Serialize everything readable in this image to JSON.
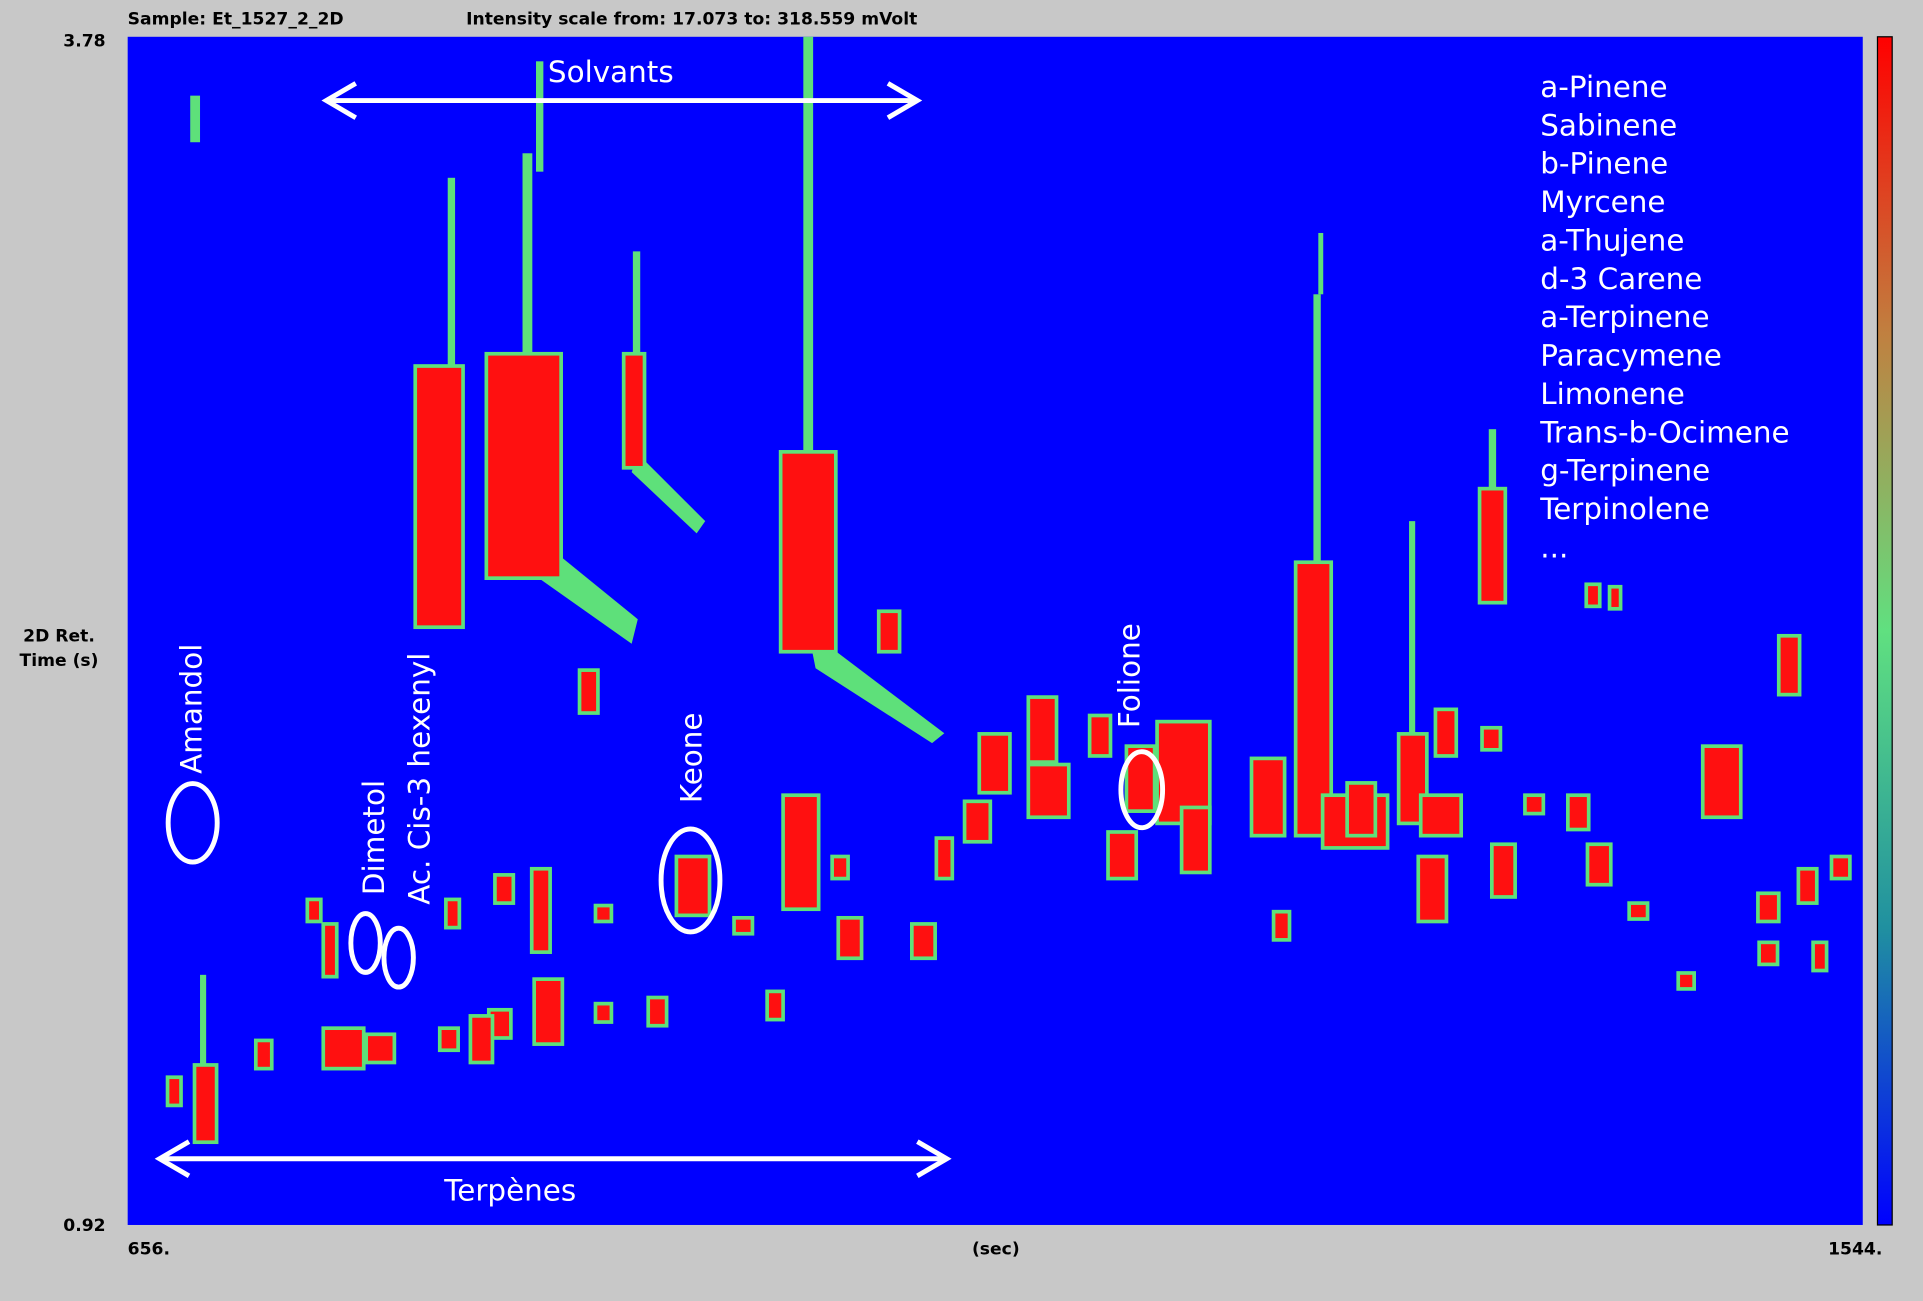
{
  "header": {
    "sample": "Sample: Et_1527_2_2D",
    "intensity": "Intensity scale from: 17.073 to: 318.559 mVolt"
  },
  "y_axis": {
    "label_lines": [
      "2D Ret.",
      "Time (s)"
    ],
    "top": "3.78",
    "bottom": "0.92"
  },
  "x_axis": {
    "left": "656.",
    "unit": "(sec)",
    "right": "1544."
  },
  "annotations": {
    "solvants": "Solvants",
    "terpenes": "Terpènes",
    "amandol": "Amandol",
    "dimetol": "Dimetol",
    "cis3": "Ac. Cis-3 hexenyl",
    "keone": "Keone",
    "folione": "Folione"
  },
  "compounds": [
    "a-Pinene",
    "Sabinene",
    "b-Pinene",
    "Myrcene",
    "a-Thujene",
    "d-3 Carene",
    "a-Terpinene",
    "Paracymene",
    "Limonene",
    "Trans-b-Ocimene",
    "g-Terpinene",
    "Terpinolene",
    "..."
  ]
}
